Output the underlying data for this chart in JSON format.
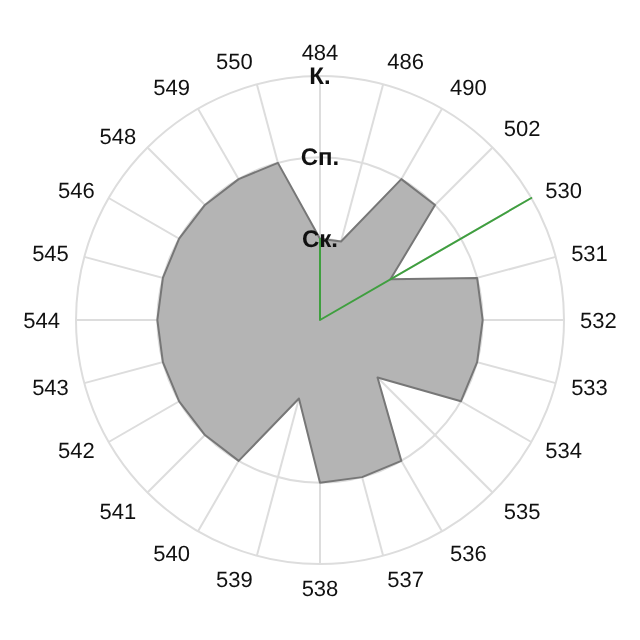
{
  "chart_data": {
    "type": "radar",
    "categories": [
      "484",
      "486",
      "490",
      "502",
      "530",
      "531",
      "532",
      "533",
      "534",
      "535",
      "536",
      "537",
      "538",
      "539",
      "540",
      "541",
      "542",
      "543",
      "544",
      "545",
      "546",
      "548",
      "549",
      "550"
    ],
    "series": [
      {
        "color": "#b4b4b4",
        "values": [
          1,
          1,
          2,
          2,
          1,
          2,
          2,
          2,
          2,
          1,
          2,
          2,
          2,
          1,
          2,
          2,
          2,
          2,
          2,
          2,
          2,
          2,
          2,
          2
        ]
      },
      {
        "color": "#3f9f3f",
        "values": [
          1,
          0,
          0,
          0,
          3,
          0,
          0,
          0,
          0,
          0,
          0,
          0,
          0,
          0,
          0,
          0,
          0,
          0,
          0,
          0,
          0,
          0,
          0,
          0
        ]
      }
    ],
    "ylim": [
      0,
      3
    ],
    "yticks": [
      {
        "value": 1,
        "label": "Ск."
      },
      {
        "value": 2,
        "label": "Сп."
      },
      {
        "value": 3,
        "label": "К."
      }
    ],
    "grid": true
  }
}
